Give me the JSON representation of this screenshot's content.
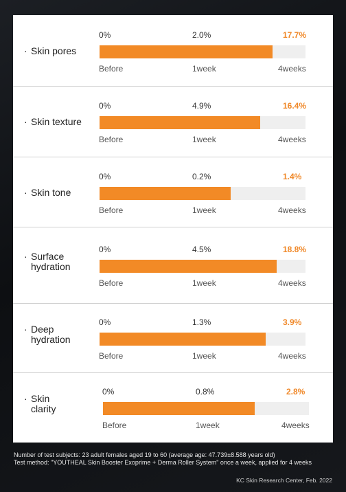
{
  "chart_data": {
    "type": "bar",
    "tick_labels": [
      "Before",
      "1week",
      "4weeks"
    ],
    "series_colors": {
      "bar": "#f28a26",
      "track": "#efefef",
      "accent_text": "#f0892a"
    },
    "rows": [
      {
        "label": "Skin pores",
        "values": [
          "0%",
          "2.0%",
          "17.7%"
        ],
        "fill_fraction": 0.84
      },
      {
        "label": "Skin texture",
        "values": [
          "0%",
          "4.9%",
          "16.4%"
        ],
        "fill_fraction": 0.78
      },
      {
        "label": "Skin tone",
        "values": [
          "0%",
          "0.2%",
          "1.4%"
        ],
        "fill_fraction": 0.635
      },
      {
        "label": "Surface\nhydration",
        "values": [
          "0%",
          "4.5%",
          "18.8%"
        ],
        "fill_fraction": 0.86
      },
      {
        "label": "Deep\nhydration",
        "values": [
          "0%",
          "1.3%",
          "3.9%"
        ],
        "fill_fraction": 0.805
      },
      {
        "label": "Skin\nclarity",
        "values": [
          "0%",
          "0.8%",
          "2.8%"
        ],
        "fill_fraction": 0.735
      }
    ]
  },
  "footer": {
    "line1": "Number of test subjects: 23 adult females aged 19 to 60 (average age: 47.739±8.588 years old)",
    "line2": "Test method: \"YOUTHEAL Skin Booster Exoprime + Derma Roller System\" once a week, applied for 4 weeks",
    "credit": "KC Skin Research Center, Feb. 2022"
  }
}
